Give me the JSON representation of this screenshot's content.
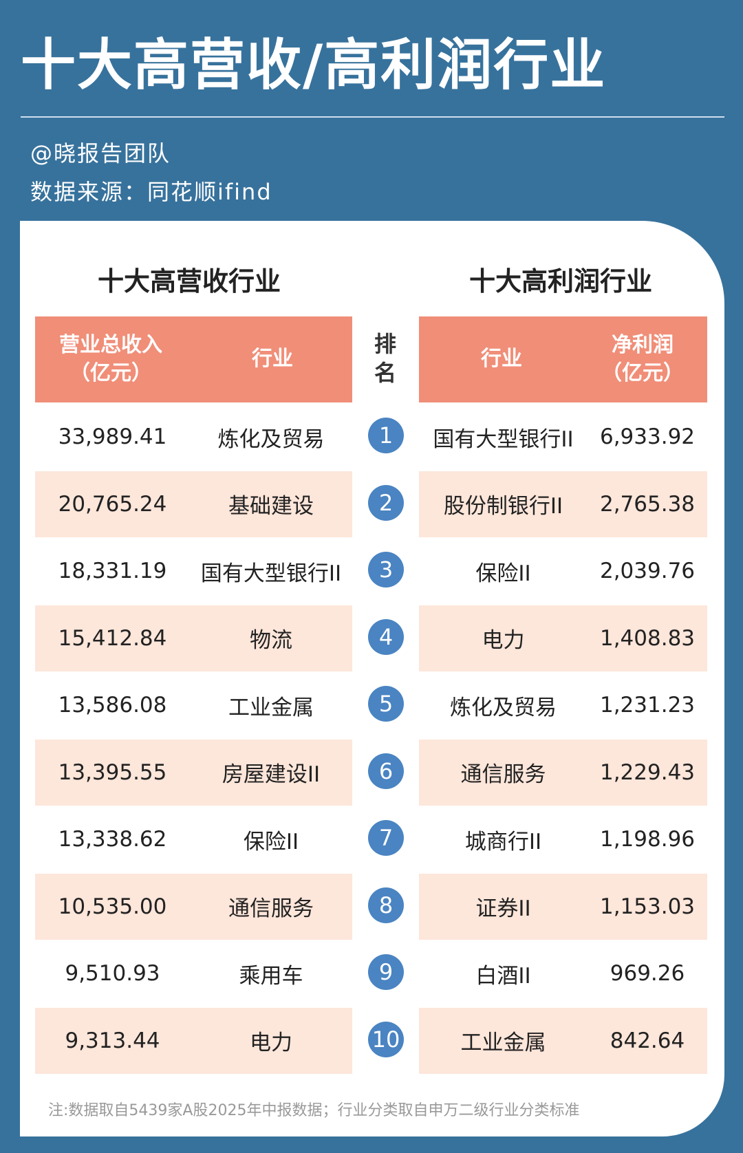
{
  "title": "十大高营收/高利润行业",
  "author": "@晓报告团队",
  "source": "数据来源：同花顺ifind",
  "left": {
    "title": "十大高营收行业",
    "col_value": "营业总收入\n（亿元）",
    "col_industry": "行业",
    "rows": [
      [
        "33,989.41",
        "炼化及贸易"
      ],
      [
        "20,765.24",
        "基础建设"
      ],
      [
        "18,331.19",
        "国有大型银行II"
      ],
      [
        "15,412.84",
        "物流"
      ],
      [
        "13,586.08",
        "工业金属"
      ],
      [
        "13,395.55",
        "房屋建设II"
      ],
      [
        "13,338.62",
        "保险II"
      ],
      [
        "10,535.00",
        "通信服务"
      ],
      [
        "9,510.93",
        "乘用车"
      ],
      [
        "9,313.44",
        "电力"
      ]
    ]
  },
  "rank_header": "排\n名",
  "ranks": [
    "1",
    "2",
    "3",
    "4",
    "5",
    "6",
    "7",
    "8",
    "9",
    "10"
  ],
  "right": {
    "title": "十大高利润行业",
    "col_industry": "行业",
    "col_value": "净利润\n（亿元）",
    "rows": [
      [
        "国有大型银行II",
        "6,933.92"
      ],
      [
        "股份制银行II",
        "2,765.38"
      ],
      [
        "保险II",
        "2,039.76"
      ],
      [
        "电力",
        "1,408.83"
      ],
      [
        "炼化及贸易",
        "1,231.23"
      ],
      [
        "通信服务",
        "1,229.43"
      ],
      [
        "城商行II",
        "1,198.96"
      ],
      [
        "证券II",
        "1,153.03"
      ],
      [
        "白酒II",
        "969.26"
      ],
      [
        "工业金属",
        "842.64"
      ]
    ]
  },
  "note": "注:数据取自5439家A股2025年中报数据；行业分类取自申万二级行业分类标准",
  "colors": {
    "background": "#37729c",
    "header": "#f08e78",
    "alt_row": "#fde6da",
    "rank_circle": "#4a84c2"
  }
}
